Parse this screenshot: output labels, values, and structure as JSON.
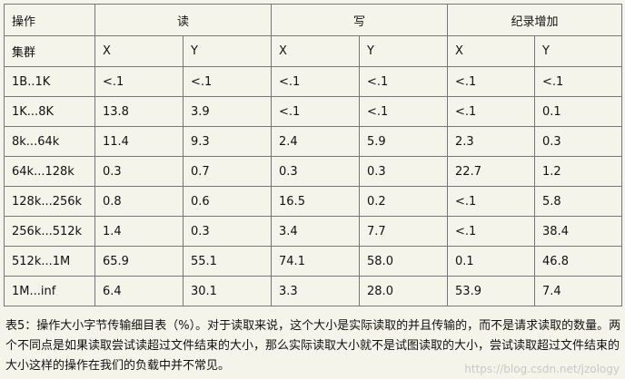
{
  "table": {
    "header": {
      "op": "操作",
      "read": "读",
      "write": "写",
      "append": "纪录增加"
    },
    "subheader": {
      "cluster": "集群",
      "cols": [
        "X",
        "Y",
        "X",
        "Y",
        "X",
        "Y"
      ]
    },
    "rows": [
      {
        "label": "1B..1K",
        "cells": [
          "<.1",
          "<.1",
          "<.1",
          "<.1",
          "<.1",
          "<.1"
        ]
      },
      {
        "label": "1K...8K",
        "cells": [
          "13.8",
          "3.9",
          "<.1",
          "<.1",
          "<.1",
          "0.1"
        ]
      },
      {
        "label": "8k...64k",
        "cells": [
          "11.4",
          "9.3",
          "2.4",
          "5.9",
          "2.3",
          "0.3"
        ]
      },
      {
        "label": "64k...128k",
        "cells": [
          "0.3",
          "0.7",
          "0.3",
          "0.3",
          "22.7",
          "1.2"
        ]
      },
      {
        "label": "128k...256k",
        "cells": [
          "0.8",
          "0.6",
          "16.5",
          "0.2",
          "<.1",
          "5.8"
        ]
      },
      {
        "label": "256k...512k",
        "cells": [
          "1.4",
          "0.3",
          "3.4",
          "7.7",
          "<.1",
          "38.4"
        ]
      },
      {
        "label": "512k...1M",
        "cells": [
          "65.9",
          "55.1",
          "74.1",
          "58.0",
          "0.1",
          "46.8"
        ]
      },
      {
        "label": "1M...inf",
        "cells": [
          "6.4",
          "30.1",
          "3.3",
          "28.0",
          "53.9",
          "7.4"
        ]
      }
    ]
  },
  "caption": "表5：操作大小字节传输细目表（%）。对于读取来说，这个大小是实际读取的并且传输的，而不是请求读取的数量。两个不同点是如果读取尝试读超过文件结束的大小，那么实际读取大小就不是试图读取的大小，尝试读取超过文件结束的大小这样的操作在我们的负载中并不常见。",
  "watermark": "https://blog.csdn.net/jzology"
}
